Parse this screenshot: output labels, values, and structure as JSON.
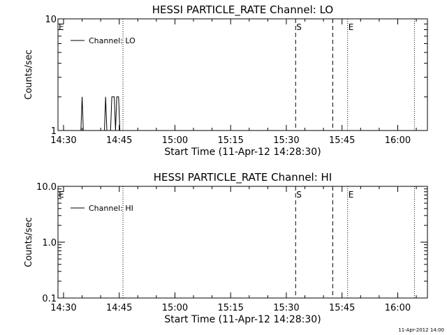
{
  "footer_stamp": "11-Apr-2012 14:00",
  "chart_data": [
    {
      "type": "line",
      "title": "HESSI PARTICLE_RATE Channel: LO",
      "xlabel": "Start Time (11-Apr-12 14:28:30)",
      "ylabel": "Counts/sec",
      "yscale": "log",
      "ylim": [
        1,
        10
      ],
      "yticks": [
        {
          "value": 1,
          "label": "1"
        },
        {
          "value": 10,
          "label": "10"
        }
      ],
      "xlim": [
        "14:28:30",
        "16:08:00"
      ],
      "xticks": [
        "14:30",
        "14:45",
        "15:00",
        "15:15",
        "15:30",
        "15:45",
        "16:00"
      ],
      "legend": {
        "position": "top-left",
        "entries": [
          "Channel: LO"
        ]
      },
      "series": [
        {
          "name": "Channel: LO",
          "color": "#000000",
          "points": [
            {
              "t": "14:34:40",
              "v": 1
            },
            {
              "t": "14:35:00",
              "v": 2
            },
            {
              "t": "14:35:20",
              "v": 1
            },
            {
              "t": "14:41:00",
              "v": 1
            },
            {
              "t": "14:41:20",
              "v": 2
            },
            {
              "t": "14:41:40",
              "v": 1
            },
            {
              "t": "14:42:40",
              "v": 1
            },
            {
              "t": "14:43:00",
              "v": 2
            },
            {
              "t": "14:43:40",
              "v": 2
            },
            {
              "t": "14:44:00",
              "v": 1
            },
            {
              "t": "14:44:20",
              "v": 2
            },
            {
              "t": "14:44:50",
              "v": 2
            },
            {
              "t": "14:45:10",
              "v": 1
            }
          ]
        }
      ],
      "markers": [
        {
          "time": "14:28:30",
          "style": "dotted",
          "label": "E"
        },
        {
          "time": "14:46:00",
          "style": "dotted",
          "label": ""
        },
        {
          "time": "15:32:30",
          "style": "dashed",
          "label": "S"
        },
        {
          "time": "15:42:30",
          "style": "dashed",
          "label": ""
        },
        {
          "time": "15:46:30",
          "style": "dotted",
          "label": "E"
        },
        {
          "time": "16:04:30",
          "style": "dotted",
          "label": ""
        }
      ]
    },
    {
      "type": "line",
      "title": "HESSI PARTICLE_RATE Channel: HI",
      "xlabel": "Start Time (11-Apr-12 14:28:30)",
      "ylabel": "Counts/sec",
      "yscale": "log",
      "ylim": [
        0.1,
        10
      ],
      "yticks": [
        {
          "value": 0.1,
          "label": "0.1"
        },
        {
          "value": 1,
          "label": "1.0"
        },
        {
          "value": 10,
          "label": "10.0"
        }
      ],
      "xlim": [
        "14:28:30",
        "16:08:00"
      ],
      "xticks": [
        "14:30",
        "14:45",
        "15:00",
        "15:15",
        "15:30",
        "15:45",
        "16:00"
      ],
      "legend": {
        "position": "top-left",
        "entries": [
          "Channel: HI"
        ]
      },
      "series": [
        {
          "name": "Channel: HI",
          "color": "#000000",
          "points": []
        }
      ],
      "markers": [
        {
          "time": "14:28:30",
          "style": "dotted",
          "label": "E"
        },
        {
          "time": "14:46:00",
          "style": "dotted",
          "label": ""
        },
        {
          "time": "15:32:30",
          "style": "dashed",
          "label": "S"
        },
        {
          "time": "15:42:30",
          "style": "dashed",
          "label": ""
        },
        {
          "time": "15:46:30",
          "style": "dotted",
          "label": "E"
        },
        {
          "time": "16:04:30",
          "style": "dotted",
          "label": ""
        }
      ]
    }
  ]
}
